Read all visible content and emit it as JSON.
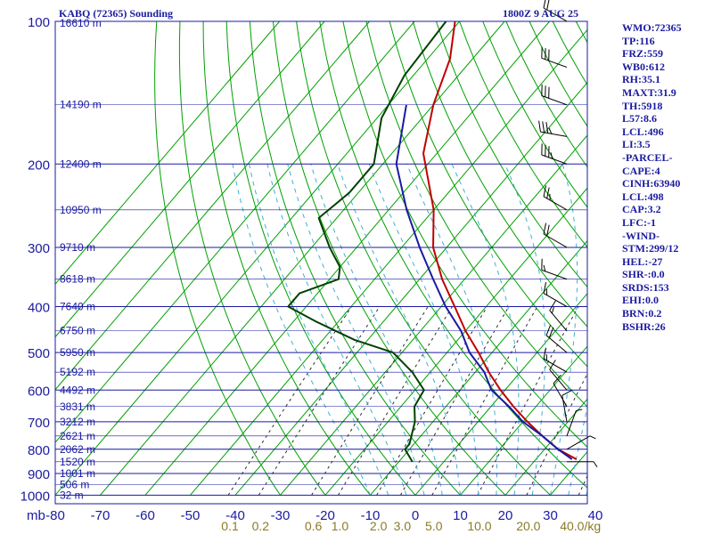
{
  "header": {
    "station": "KABQ (72365) Sounding",
    "time": "1800Z  9 AUG 25"
  },
  "stats": [
    "WMO:72365",
    "TP:116",
    "FRZ:559",
    "WB0:612",
    "RH:35.1",
    "MAXT:31.9",
    "TH:5918",
    "L57:8.6",
    "LCL:496",
    "LI:3.5",
    "-PARCEL-",
    "CAPE:4",
    "CINH:63940",
    "LCL:498",
    "CAP:3.2",
    "LFC:-1",
    "-WIND-",
    "STM:299/12",
    "HEL:-27",
    "SHR-:0.0",
    "SRDS:153",
    "EHI:0.0",
    "BRN:0.2",
    "BSHR:26"
  ],
  "chart_data": {
    "type": "line",
    "subtype": "skew-t",
    "pressure_ticks": [
      "100",
      "200",
      "300",
      "400",
      "500",
      "600",
      "700",
      "800",
      "900",
      "1000"
    ],
    "pressure_unit": "mb",
    "temp_ticks": [
      "-80",
      "-70",
      "-60",
      "-50",
      "-40",
      "-30",
      "-20",
      "-10",
      "0",
      "10",
      "20",
      "30",
      "40"
    ],
    "mixing_ratio_labels": [
      "0.1",
      "0.2",
      "0.6",
      "1.0",
      "2.0",
      "3.0",
      "5.0",
      "10.0",
      "20.0",
      "40.0"
    ],
    "mixing_ratio_unit": "g/kg",
    "height_labels": [
      {
        "p": 100,
        "label": "16610 m"
      },
      {
        "p": 150,
        "label": "14190 m"
      },
      {
        "p": 200,
        "label": "12400 m"
      },
      {
        "p": 250,
        "label": "10950 m"
      },
      {
        "p": 300,
        "label": "9710 m"
      },
      {
        "p": 350,
        "label": "8618 m"
      },
      {
        "p": 400,
        "label": "7640 m"
      },
      {
        "p": 450,
        "label": "6750 m"
      },
      {
        "p": 500,
        "label": "5950 m"
      },
      {
        "p": 550,
        "label": "5192 m"
      },
      {
        "p": 600,
        "label": "4492 m"
      },
      {
        "p": 650,
        "label": "3831 m"
      },
      {
        "p": 700,
        "label": "3212 m"
      },
      {
        "p": 750,
        "label": "2621 m"
      },
      {
        "p": 800,
        "label": "2062 m"
      },
      {
        "p": 850,
        "label": "1520 m"
      },
      {
        "p": 900,
        "label": "1001 m"
      },
      {
        "p": 950,
        "label": "506 m"
      },
      {
        "p": 1000,
        "label": "32 m"
      }
    ],
    "series": [
      {
        "color": "#c00000",
        "points": [
          [
            100,
            -81
          ],
          [
            120,
            -75
          ],
          [
            150,
            -70
          ],
          [
            190,
            -63
          ],
          [
            250,
            -50
          ],
          [
            300,
            -43
          ],
          [
            350,
            -35
          ],
          [
            400,
            -27
          ],
          [
            450,
            -20
          ],
          [
            500,
            -13
          ],
          [
            550,
            -7
          ],
          [
            600,
            -1
          ],
          [
            650,
            5
          ],
          [
            700,
            11
          ],
          [
            750,
            17
          ],
          [
            800,
            23
          ],
          [
            840,
            29
          ]
        ]
      },
      {
        "color": "#004000",
        "points": [
          [
            100,
            -83
          ],
          [
            130,
            -82
          ],
          [
            160,
            -79
          ],
          [
            200,
            -72
          ],
          [
            230,
            -72
          ],
          [
            260,
            -74
          ],
          [
            300,
            -66
          ],
          [
            330,
            -60
          ],
          [
            350,
            -58
          ],
          [
            375,
            -64
          ],
          [
            400,
            -64
          ],
          [
            430,
            -55
          ],
          [
            470,
            -43
          ],
          [
            500,
            -32
          ],
          [
            550,
            -24
          ],
          [
            600,
            -18
          ],
          [
            650,
            -17
          ],
          [
            700,
            -14
          ],
          [
            780,
            -11
          ],
          [
            800,
            -11
          ],
          [
            850,
            -7
          ]
        ]
      },
      {
        "color": "#1a1aa0",
        "points": [
          [
            150,
            -76
          ],
          [
            200,
            -67
          ],
          [
            250,
            -56
          ],
          [
            300,
            -46
          ],
          [
            350,
            -37
          ],
          [
            400,
            -29
          ],
          [
            450,
            -21
          ],
          [
            500,
            -15
          ],
          [
            550,
            -8
          ],
          [
            600,
            -3
          ],
          [
            650,
            4
          ],
          [
            700,
            10
          ],
          [
            750,
            17
          ],
          [
            800,
            23
          ],
          [
            840,
            28
          ]
        ]
      }
    ],
    "wind": [
      {
        "p": 100,
        "dir": 300,
        "spd": 20
      },
      {
        "p": 125,
        "dir": 290,
        "spd": 30
      },
      {
        "p": 150,
        "dir": 290,
        "spd": 30
      },
      {
        "p": 175,
        "dir": 280,
        "spd": 35
      },
      {
        "p": 200,
        "dir": 290,
        "spd": 35
      },
      {
        "p": 250,
        "dir": 300,
        "spd": 25
      },
      {
        "p": 300,
        "dir": 300,
        "spd": 20
      },
      {
        "p": 350,
        "dir": 290,
        "spd": 15
      },
      {
        "p": 400,
        "dir": 300,
        "spd": 15
      },
      {
        "p": 450,
        "dir": 320,
        "spd": 15
      },
      {
        "p": 500,
        "dir": 310,
        "spd": 20
      },
      {
        "p": 550,
        "dir": 300,
        "spd": 15
      },
      {
        "p": 600,
        "dir": 320,
        "spd": 10
      },
      {
        "p": 650,
        "dir": 330,
        "spd": 10
      },
      {
        "p": 700,
        "dir": 350,
        "spd": 10
      },
      {
        "p": 750,
        "dir": 20,
        "spd": 5
      },
      {
        "p": 800,
        "dir": 60,
        "spd": 5
      },
      {
        "p": 850,
        "dir": 90,
        "spd": 5
      }
    ]
  }
}
